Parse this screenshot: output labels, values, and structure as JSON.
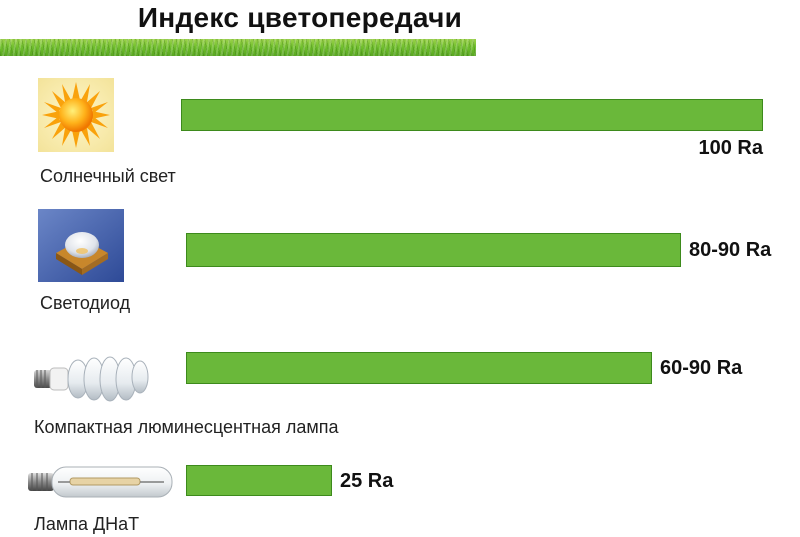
{
  "chart_data": {
    "type": "bar",
    "title": "Индекс цветопередачи",
    "categories": [
      "Солнечный свет",
      "Светодиод",
      "Компактная люминесцентная лампа",
      "Лампа ДНаТ"
    ],
    "values": [
      100,
      85,
      80,
      25
    ],
    "value_labels": [
      "100 Ra",
      "80-90 Ra",
      "60-90 Ra",
      "25 Ra"
    ],
    "xlim": [
      0,
      100
    ],
    "orientation": "horizontal",
    "grid": false,
    "legend": "none",
    "bar_color": "#6ab83a",
    "bar_border_color": "#3d8a1c"
  },
  "icons": [
    "sun-icon",
    "led-icon",
    "cfl-lamp-icon",
    "hps-lamp-icon"
  ]
}
